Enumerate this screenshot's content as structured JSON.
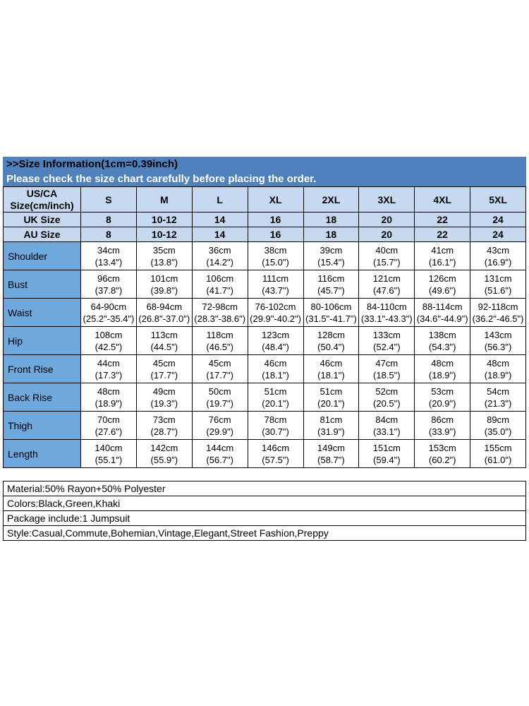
{
  "banner": {
    "line1": ">>Size Information(1cm=0.39inch)",
    "line2": "Please check the size chart carefully before placing the order."
  },
  "size_table": {
    "corner_label": "US/CA\nSize(cm/inch)",
    "sizes": [
      "S",
      "M",
      "L",
      "XL",
      "2XL",
      "3XL",
      "4XL",
      "5XL"
    ],
    "uk_row": {
      "label": "UK Size",
      "values": [
        "8",
        "10-12",
        "14",
        "16",
        "18",
        "20",
        "22",
        "24"
      ]
    },
    "au_row": {
      "label": "AU Size",
      "values": [
        "8",
        "10-12",
        "14",
        "16",
        "18",
        "20",
        "22",
        "24"
      ]
    },
    "measurement_rows": [
      {
        "label": "Shoulder",
        "values": [
          "34cm\n(13.4\")",
          "35cm\n(13.8\")",
          "36cm\n(14.2\")",
          "38cm\n(15.0\")",
          "39cm\n(15.4\")",
          "40cm\n(15.7\")",
          "41cm\n(16.1\")",
          "43cm\n(16.9\")"
        ]
      },
      {
        "label": "Bust",
        "values": [
          "96cm\n(37.8\")",
          "101cm\n(39.8\")",
          "106cm\n(41.7\")",
          "111cm\n(43.7\")",
          "116cm\n(45.7\")",
          "121cm\n(47.6\")",
          "126cm\n(49.6\")",
          "131cm\n(51.6\")"
        ]
      },
      {
        "label": "Waist",
        "values": [
          "64-90cm\n(25.2\"-35.4\")",
          "68-94cm\n(26.8\"-37.0\")",
          "72-98cm\n(28.3\"-38.6\")",
          "76-102cm\n(29.9\"-40.2\")",
          "80-106cm\n(31.5\"-41.7\")",
          "84-110cm\n(33.1\"-43.3\")",
          "88-114cm\n(34.6\"-44.9\")",
          "92-118cm\n(36.2\"-46.5\")"
        ]
      },
      {
        "label": "Hip",
        "values": [
          "108cm\n(42.5\")",
          "113cm\n(44.5\")",
          "118cm\n(46.5\")",
          "123cm\n(48.4\")",
          "128cm\n(50.4\")",
          "133cm\n(52.4\")",
          "138cm\n(54.3\")",
          "143cm\n(56.3\")"
        ]
      },
      {
        "label": "Front Rise",
        "values": [
          "44cm\n(17.3\")",
          "45cm\n(17.7\")",
          "45cm\n(17.7\")",
          "46cm\n(18.1\")",
          "46cm\n(18.1\")",
          "47cm\n(18.5\")",
          "48cm\n(18.9\")",
          "48cm\n(18.9\")"
        ]
      },
      {
        "label": "Back Rise",
        "values": [
          "48cm\n(18.9\")",
          "49cm\n(19.3\")",
          "50cm\n(19.7\")",
          "51cm\n(20.1\")",
          "51cm\n(20.1\")",
          "52cm\n(20.5\")",
          "53cm\n(20.9\")",
          "54cm\n(21.3\")"
        ]
      },
      {
        "label": "Thigh",
        "values": [
          "70cm\n(27.6\")",
          "73cm\n(28.7\")",
          "76cm\n(29.9\")",
          "78cm\n(30.7\")",
          "81cm\n(31.9\")",
          "84cm\n(33.1\")",
          "86cm\n(33.9\")",
          "89cm\n(35.0\")"
        ]
      },
      {
        "label": "Length",
        "values": [
          "140cm\n(55.1\")",
          "142cm\n(55.9\")",
          "144cm\n(56.7\")",
          "146cm\n(57.5\")",
          "149cm\n(58.7\")",
          "151cm\n(59.4\")",
          "153cm\n(60.2\")",
          "155cm\n(61.0\")"
        ]
      }
    ]
  },
  "product_info": {
    "lines": [
      "Material:50% Rayon+50% Polyester",
      "Colors:Black,Green,Khaki",
      "Package include:1 Jumpsuit",
      "Style:Casual,Commute,Bohemian,Vintage,Elegant,Street Fashion,Preppy"
    ]
  },
  "colors": {
    "banner_blue": "#4f81bd",
    "header_light_blue": "#c6d9f1",
    "label_column_blue": "#6fa8dc",
    "border": "#000000"
  }
}
